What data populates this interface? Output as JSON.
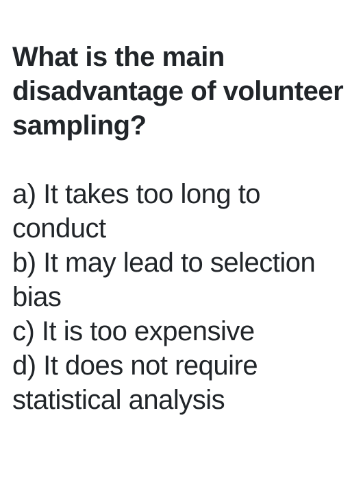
{
  "question": {
    "text": "What is the main disadvantage of volunteer sampling?",
    "fontsize": 40,
    "fontweight": 600,
    "color": "#212529"
  },
  "options": {
    "a": "a) It takes too long to conduct",
    "b": "b) It may lead to selection bias",
    "c": "c) It is too expensive",
    "d": "d) It does not require statistical analysis",
    "fontsize": 40,
    "fontweight": 400,
    "color": "#212529"
  },
  "background_color": "#ffffff"
}
